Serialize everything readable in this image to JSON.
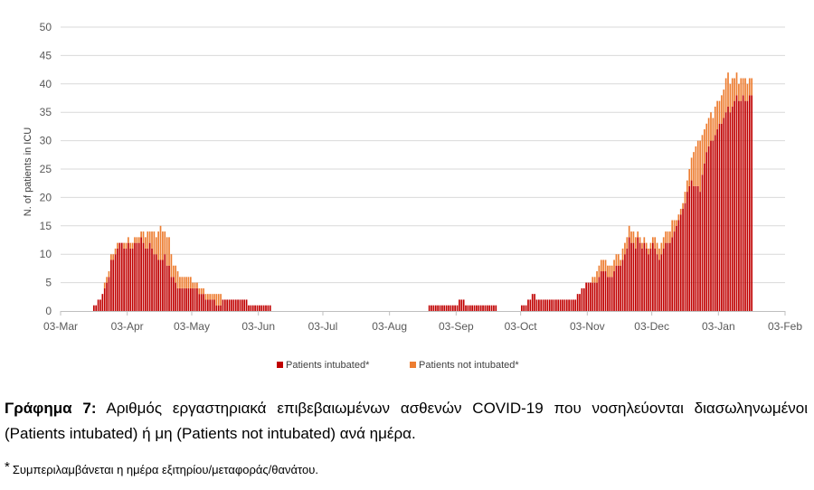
{
  "chart_data": {
    "type": "bar",
    "stacked": true,
    "title": "",
    "xlabel": "",
    "ylabel": "N. of patients in ICU",
    "ylim": [
      0,
      50
    ],
    "yticks": [
      0,
      5,
      10,
      15,
      20,
      25,
      30,
      35,
      40,
      45,
      50
    ],
    "xticks": [
      "03-Mar",
      "03-Apr",
      "03-May",
      "03-Jun",
      "03-Jul",
      "03-Aug",
      "03-Sep",
      "03-Oct",
      "03-Nov",
      "03-Dec",
      "03-Jan",
      "03-Feb"
    ],
    "grid": "horizontal",
    "legend_position": "bottom",
    "colors": {
      "intubated": "#C00000",
      "not_intubated": "#ED7D31"
    },
    "series": [
      {
        "name": "Patients intubated*",
        "color": "#C00000",
        "segments": [
          {
            "start_tick": 0,
            "start_day": 15,
            "values": [
              1,
              1,
              2,
              2,
              3,
              4,
              5,
              6,
              9,
              9,
              10,
              11,
              12,
              12,
              11,
              11,
              12,
              11,
              11,
              12,
              12,
              12,
              13,
              12,
              11,
              11,
              12,
              11,
              10,
              10,
              9,
              9,
              9,
              10,
              8,
              8,
              6,
              6,
              5,
              4,
              4,
              4,
              4,
              4,
              4,
              4,
              4,
              4,
              4,
              3,
              3,
              3,
              2,
              2,
              2,
              2,
              2,
              1,
              1,
              1,
              2,
              2,
              2,
              2,
              2,
              2,
              2,
              2,
              2,
              2,
              2,
              2,
              1,
              1,
              1,
              1,
              1,
              1,
              1,
              1,
              1,
              1,
              1
            ]
          },
          {
            "start_tick": 5,
            "start_day": 18,
            "values": [
              1,
              1,
              1,
              1,
              1,
              1,
              1,
              1,
              1,
              1,
              1,
              1,
              1,
              1,
              2,
              2,
              2,
              1,
              1,
              1,
              1,
              1,
              1,
              1,
              1,
              1,
              1,
              1,
              1,
              1,
              1,
              1
            ]
          },
          {
            "start_tick": 7,
            "start_day": 0,
            "values": [
              1,
              1,
              1,
              2,
              2,
              3,
              3,
              2,
              2,
              2,
              2,
              2,
              2,
              2,
              2,
              2,
              2,
              2,
              2,
              2,
              2,
              2,
              2,
              2,
              2,
              2,
              3,
              3,
              4,
              4,
              5,
              5,
              5,
              5,
              5,
              5,
              6,
              7,
              7,
              7,
              6,
              6,
              6,
              7,
              8,
              8,
              8,
              9,
              10,
              11,
              13,
              12,
              12,
              11,
              13,
              12,
              11,
              12,
              11,
              10,
              11,
              12,
              11,
              10,
              9,
              10,
              11,
              12,
              12,
              12,
              13,
              14,
              15,
              16,
              17,
              18,
              19,
              21,
              22,
              23,
              22,
              22,
              22,
              21,
              24,
              26,
              28,
              29,
              30,
              30,
              31,
              32,
              33,
              33,
              34,
              35,
              36,
              35,
              36,
              37,
              38,
              37,
              37,
              38,
              37,
              37,
              38,
              38
            ]
          }
        ]
      },
      {
        "name": "Patients not intubated*",
        "color": "#ED7D31",
        "segments": [
          {
            "start_tick": 0,
            "start_day": 15,
            "values": [
              0,
              0,
              0,
              0,
              0,
              1,
              1,
              1,
              1,
              1,
              1,
              1,
              0,
              0,
              1,
              1,
              1,
              1,
              1,
              1,
              1,
              1,
              1,
              2,
              2,
              3,
              2,
              3,
              4,
              3,
              5,
              6,
              5,
              4,
              5,
              5,
              4,
              2,
              3,
              3,
              2,
              2,
              2,
              2,
              2,
              2,
              1,
              1,
              1,
              1,
              1,
              1,
              1,
              1,
              1,
              1,
              1,
              2,
              2,
              2,
              0,
              0,
              0,
              0,
              0,
              0,
              0,
              0,
              0,
              0,
              0,
              0,
              0,
              0,
              0,
              0,
              0,
              0,
              0,
              0,
              0,
              0,
              0
            ]
          },
          {
            "start_tick": 5,
            "start_day": 18,
            "values": [
              0,
              0,
              0,
              0,
              0,
              0,
              0,
              0,
              0,
              0,
              0,
              0,
              0,
              0,
              0,
              0,
              0,
              0,
              0,
              0,
              0,
              0,
              0,
              0,
              0,
              0,
              0,
              0,
              0,
              0,
              0,
              0
            ]
          },
          {
            "start_tick": 7,
            "start_day": 0,
            "values": [
              0,
              0,
              0,
              0,
              0,
              0,
              0,
              0,
              0,
              0,
              0,
              0,
              0,
              0,
              0,
              0,
              0,
              0,
              0,
              0,
              0,
              0,
              0,
              0,
              0,
              0,
              0,
              0,
              0,
              0,
              0,
              0,
              0,
              1,
              1,
              2,
              2,
              2,
              2,
              2,
              2,
              2,
              2,
              2,
              2,
              2,
              1,
              2,
              2,
              2,
              2,
              2,
              2,
              2,
              1,
              1,
              1,
              1,
              1,
              1,
              1,
              1,
              2,
              2,
              2,
              2,
              2,
              2,
              2,
              2,
              3,
              2,
              1,
              1,
              1,
              1,
              2,
              2,
              3,
              4,
              6,
              7,
              8,
              9,
              7,
              6,
              5,
              5,
              5,
              4,
              5,
              5,
              4,
              5,
              5,
              6,
              6,
              5,
              5,
              4,
              4,
              3,
              4,
              3,
              4,
              3,
              3,
              3
            ]
          }
        ]
      }
    ]
  },
  "legend": {
    "intubated_label": "Patients intubated*",
    "not_intubated_label": "Patients not intubated*"
  },
  "caption": {
    "figure_label": "Γράφημα 7:",
    "text": "Αριθμός εργαστηριακά επιβεβαιωμένων ασθενών COVID-19 που νοσηλεύονται διασωληνωμένοι (Patients intubated) ή μη (Patients not intubated) ανά ημέρα."
  },
  "footnote": {
    "marker": "*",
    "text": "Συμπεριλαμβάνεται η ημέρα εξιτηρίου/μεταφοράς/θανάτου."
  }
}
